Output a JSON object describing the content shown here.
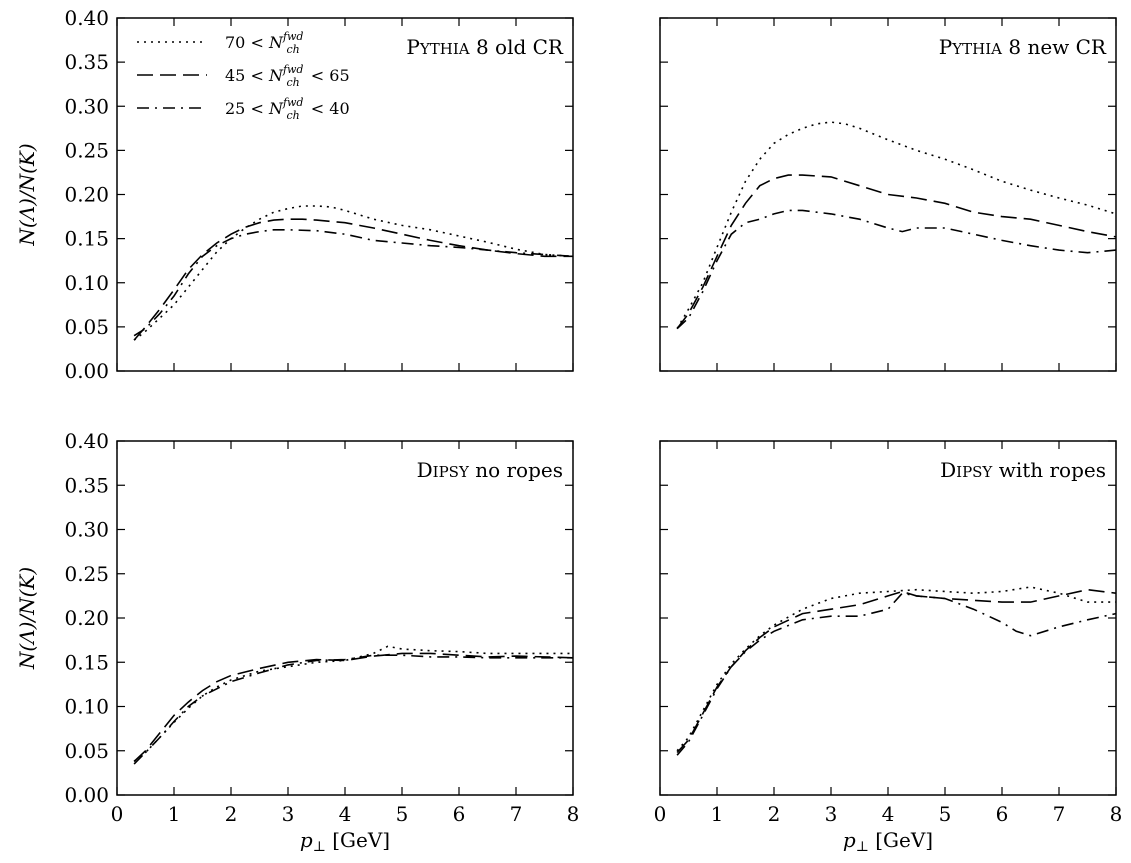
{
  "chart_data": [
    {
      "type": "line",
      "title": "PYTHIA 8 old CR",
      "title_main": "P",
      "title_small": "YTHIA",
      "title_rest": " 8 old CR",
      "xlabel": "",
      "ylabel": "N(Λ)/N(K)",
      "xlim": [
        0,
        8
      ],
      "ylim": [
        0,
        0.4
      ],
      "x_ticks": [
        "0",
        "1",
        "2",
        "3",
        "4",
        "5",
        "6",
        "7",
        "8"
      ],
      "y_ticks": [
        "0.00",
        "0.05",
        "0.10",
        "0.15",
        "0.20",
        "0.25",
        "0.30",
        "0.35",
        "0.40"
      ],
      "legend": "top-left",
      "series": [
        {
          "name": "70 < N_ch^fwd",
          "name_lhs": "70 <",
          "name_sym": "N",
          "name_sub": "ch",
          "name_sup": "fwd",
          "name_rhs": "",
          "style": "dotted",
          "x": [
            0.3,
            0.5,
            0.75,
            1.0,
            1.25,
            1.5,
            1.75,
            2.0,
            2.25,
            2.5,
            2.75,
            3.0,
            3.25,
            3.5,
            3.75,
            4.0,
            4.5,
            5.0,
            5.5,
            6.0,
            6.5,
            7.0,
            7.5,
            8.0
          ],
          "y": [
            0.035,
            0.045,
            0.06,
            0.075,
            0.095,
            0.115,
            0.135,
            0.15,
            0.162,
            0.172,
            0.18,
            0.184,
            0.187,
            0.187,
            0.186,
            0.182,
            0.172,
            0.165,
            0.16,
            0.153,
            0.146,
            0.138,
            0.132,
            0.13
          ]
        },
        {
          "name": "45 < N_ch^fwd < 65",
          "name_lhs": "45 <",
          "name_sym": "N",
          "name_sub": "ch",
          "name_sup": "fwd",
          "name_rhs": "< 65",
          "style": "dashed",
          "x": [
            0.3,
            0.5,
            0.75,
            1.0,
            1.25,
            1.5,
            1.75,
            2.0,
            2.25,
            2.5,
            2.75,
            3.0,
            3.25,
            3.5,
            4.0,
            4.5,
            5.0,
            5.5,
            6.0,
            6.5,
            7.0,
            7.5,
            8.0
          ],
          "y": [
            0.035,
            0.05,
            0.07,
            0.092,
            0.115,
            0.132,
            0.145,
            0.155,
            0.163,
            0.168,
            0.171,
            0.172,
            0.172,
            0.171,
            0.168,
            0.162,
            0.155,
            0.148,
            0.142,
            0.137,
            0.133,
            0.13,
            0.13
          ]
        },
        {
          "name": "25 < N_ch^fwd < 40",
          "name_lhs": "25 <",
          "name_sym": "N",
          "name_sub": "ch",
          "name_sup": "fwd",
          "name_rhs": "< 40",
          "style": "dashdot",
          "x": [
            0.3,
            0.5,
            0.75,
            1.0,
            1.25,
            1.5,
            1.75,
            2.0,
            2.25,
            2.5,
            2.75,
            3.0,
            3.5,
            4.0,
            4.5,
            5.0,
            5.5,
            6.0,
            6.5,
            7.0,
            7.5,
            8.0
          ],
          "y": [
            0.04,
            0.048,
            0.065,
            0.085,
            0.11,
            0.13,
            0.142,
            0.15,
            0.155,
            0.158,
            0.16,
            0.16,
            0.159,
            0.155,
            0.148,
            0.145,
            0.142,
            0.14,
            0.137,
            0.134,
            0.132,
            0.13
          ]
        }
      ]
    },
    {
      "type": "line",
      "title": "PYTHIA 8 new CR",
      "title_main": "P",
      "title_small": "YTHIA",
      "title_rest": " 8 new CR",
      "xlabel": "",
      "ylabel": "",
      "xlim": [
        0,
        8
      ],
      "ylim": [
        0,
        0.4
      ],
      "x_ticks": [
        "0",
        "1",
        "2",
        "3",
        "4",
        "5",
        "6",
        "7",
        "8"
      ],
      "y_ticks": [],
      "series": [
        {
          "name": "70 < N_ch^fwd",
          "style": "dotted",
          "x": [
            0.3,
            0.5,
            0.75,
            1.0,
            1.25,
            1.5,
            1.75,
            2.0,
            2.25,
            2.5,
            2.75,
            3.0,
            3.25,
            3.5,
            4.0,
            4.5,
            5.0,
            5.5,
            6.0,
            6.5,
            7.0,
            7.5,
            8.0
          ],
          "y": [
            0.048,
            0.07,
            0.1,
            0.14,
            0.18,
            0.215,
            0.24,
            0.258,
            0.268,
            0.275,
            0.28,
            0.282,
            0.28,
            0.275,
            0.262,
            0.25,
            0.24,
            0.228,
            0.215,
            0.205,
            0.196,
            0.188,
            0.178
          ]
        },
        {
          "name": "45 < N_ch^fwd < 65",
          "style": "dashed",
          "x": [
            0.3,
            0.5,
            0.75,
            1.0,
            1.25,
            1.5,
            1.75,
            2.0,
            2.25,
            2.5,
            2.75,
            3.0,
            3.5,
            4.0,
            4.5,
            5.0,
            5.5,
            6.0,
            6.5,
            7.0,
            7.5,
            8.0
          ],
          "y": [
            0.048,
            0.065,
            0.095,
            0.13,
            0.165,
            0.19,
            0.21,
            0.218,
            0.222,
            0.222,
            0.221,
            0.22,
            0.21,
            0.2,
            0.196,
            0.19,
            0.18,
            0.175,
            0.172,
            0.165,
            0.158,
            0.152
          ]
        },
        {
          "name": "25 < N_ch^fwd < 40",
          "style": "dashdot",
          "x": [
            0.3,
            0.5,
            0.75,
            1.0,
            1.25,
            1.5,
            1.75,
            2.0,
            2.25,
            2.5,
            2.75,
            3.0,
            3.5,
            4.0,
            4.25,
            4.5,
            5.0,
            5.5,
            6.0,
            6.5,
            7.0,
            7.5,
            8.0
          ],
          "y": [
            0.048,
            0.06,
            0.09,
            0.125,
            0.155,
            0.168,
            0.172,
            0.178,
            0.182,
            0.182,
            0.18,
            0.178,
            0.172,
            0.162,
            0.158,
            0.162,
            0.162,
            0.155,
            0.148,
            0.142,
            0.137,
            0.134,
            0.137
          ]
        }
      ]
    },
    {
      "type": "line",
      "title": "DIPSY no ropes",
      "title_main": "D",
      "title_small": "IPSY",
      "title_rest": " no ropes",
      "xlabel": "p⊥ [GeV]",
      "ylabel": "N(Λ)/N(K)",
      "xlim": [
        0,
        8
      ],
      "ylim": [
        0,
        0.4
      ],
      "x_ticks": [
        "0",
        "1",
        "2",
        "3",
        "4",
        "5",
        "6",
        "7",
        "8"
      ],
      "y_ticks": [
        "0.00",
        "0.05",
        "0.10",
        "0.15",
        "0.20",
        "0.25",
        "0.30",
        "0.35",
        "0.40"
      ],
      "series": [
        {
          "name": "70 < N_ch^fwd",
          "style": "dotted",
          "x": [
            0.3,
            0.5,
            0.75,
            1.0,
            1.25,
            1.5,
            1.75,
            2.0,
            2.5,
            3.0,
            3.5,
            4.0,
            4.5,
            4.75,
            5.0,
            5.5,
            6.0,
            6.5,
            7.0,
            7.5,
            8.0
          ],
          "y": [
            0.038,
            0.048,
            0.065,
            0.082,
            0.098,
            0.112,
            0.122,
            0.13,
            0.14,
            0.145,
            0.15,
            0.152,
            0.16,
            0.168,
            0.165,
            0.163,
            0.162,
            0.16,
            0.16,
            0.16,
            0.16
          ]
        },
        {
          "name": "45 < N_ch^fwd < 65",
          "style": "dashed",
          "x": [
            0.3,
            0.5,
            0.75,
            1.0,
            1.25,
            1.5,
            1.75,
            2.0,
            2.5,
            3.0,
            3.5,
            4.0,
            4.5,
            5.0,
            5.5,
            6.0,
            6.5,
            7.0,
            7.5,
            8.0
          ],
          "y": [
            0.038,
            0.05,
            0.07,
            0.09,
            0.105,
            0.118,
            0.128,
            0.135,
            0.143,
            0.15,
            0.153,
            0.152,
            0.157,
            0.16,
            0.16,
            0.158,
            0.156,
            0.157,
            0.156,
            0.155
          ]
        },
        {
          "name": "25 < N_ch^fwd < 40",
          "style": "dashdot",
          "x": [
            0.3,
            0.5,
            0.75,
            1.0,
            1.25,
            1.5,
            1.75,
            2.0,
            2.5,
            3.0,
            3.5,
            4.0,
            4.5,
            5.0,
            5.5,
            6.0,
            6.5,
            7.0,
            7.5,
            8.0
          ],
          "y": [
            0.035,
            0.048,
            0.065,
            0.083,
            0.1,
            0.112,
            0.12,
            0.128,
            0.138,
            0.147,
            0.152,
            0.153,
            0.158,
            0.158,
            0.156,
            0.156,
            0.155,
            0.155,
            0.155,
            0.155
          ]
        }
      ]
    },
    {
      "type": "line",
      "title": "DIPSY with ropes",
      "title_main": "D",
      "title_small": "IPSY",
      "title_rest": " with ropes",
      "xlabel": "p⊥ [GeV]",
      "ylabel": "",
      "xlim": [
        0,
        8
      ],
      "ylim": [
        0,
        0.4
      ],
      "x_ticks": [
        "0",
        "1",
        "2",
        "3",
        "4",
        "5",
        "6",
        "7",
        "8"
      ],
      "y_ticks": [],
      "series": [
        {
          "name": "70 < N_ch^fwd",
          "style": "dotted",
          "x": [
            0.3,
            0.5,
            0.75,
            1.0,
            1.25,
            1.5,
            1.75,
            2.0,
            2.5,
            3.0,
            3.5,
            4.0,
            4.5,
            5.0,
            5.5,
            6.0,
            6.5,
            7.0,
            7.5,
            8.0
          ],
          "y": [
            0.05,
            0.065,
            0.095,
            0.125,
            0.148,
            0.165,
            0.18,
            0.192,
            0.21,
            0.222,
            0.228,
            0.23,
            0.232,
            0.23,
            0.228,
            0.23,
            0.235,
            0.228,
            0.218,
            0.218
          ]
        },
        {
          "name": "45 < N_ch^fwd < 65",
          "style": "dashed",
          "x": [
            0.3,
            0.5,
            0.75,
            1.0,
            1.25,
            1.5,
            1.75,
            2.0,
            2.5,
            3.0,
            3.5,
            4.0,
            4.25,
            4.5,
            5.0,
            5.5,
            6.0,
            6.5,
            7.0,
            7.5,
            8.0
          ],
          "y": [
            0.048,
            0.062,
            0.092,
            0.122,
            0.145,
            0.163,
            0.178,
            0.19,
            0.205,
            0.21,
            0.215,
            0.225,
            0.23,
            0.225,
            0.222,
            0.22,
            0.218,
            0.218,
            0.225,
            0.232,
            0.228
          ]
        },
        {
          "name": "25 < N_ch^fwd < 40",
          "style": "dashdot",
          "x": [
            0.3,
            0.5,
            0.75,
            1.0,
            1.25,
            1.5,
            1.75,
            2.0,
            2.5,
            3.0,
            3.5,
            4.0,
            4.25,
            4.5,
            5.0,
            5.5,
            6.0,
            6.25,
            6.5,
            7.0,
            7.5,
            8.0
          ],
          "y": [
            0.045,
            0.06,
            0.09,
            0.12,
            0.145,
            0.162,
            0.175,
            0.185,
            0.198,
            0.202,
            0.202,
            0.21,
            0.228,
            0.225,
            0.222,
            0.21,
            0.195,
            0.185,
            0.18,
            0.19,
            0.198,
            0.205
          ]
        }
      ]
    }
  ]
}
